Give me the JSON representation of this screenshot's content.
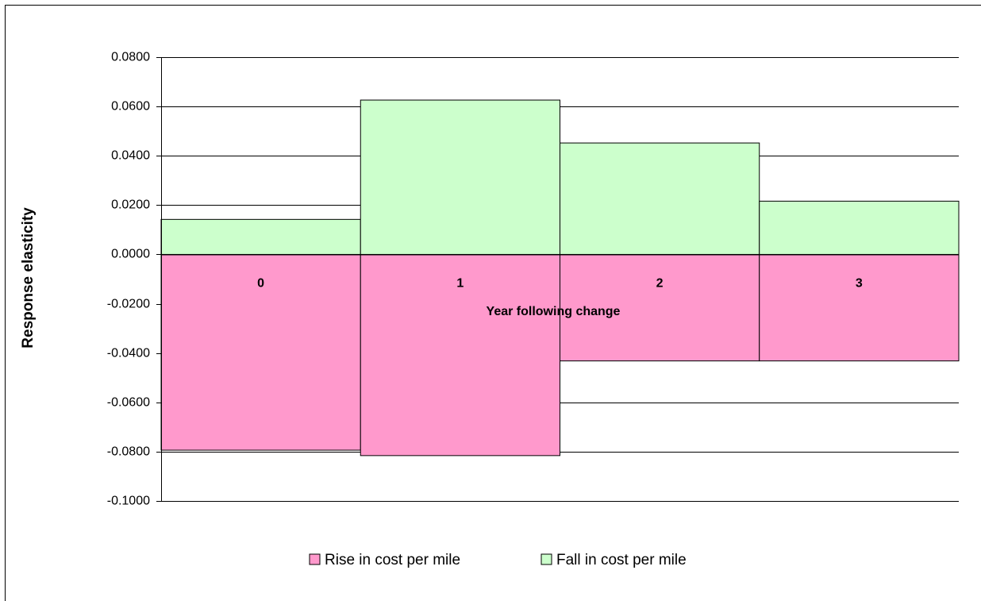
{
  "chart_data": {
    "type": "bar",
    "x_label": "Year following change",
    "y_label": "Response elasticity",
    "categories": [
      "0",
      "1",
      "2",
      "3"
    ],
    "series": [
      {
        "name": "Rise in cost per mile",
        "color": "#ff99cc",
        "values": [
          -0.0794,
          -0.0816,
          -0.0432,
          -0.0432
        ]
      },
      {
        "name": "Fall in cost per mile",
        "color": "#ccffcc",
        "values": [
          0.0142,
          0.0626,
          0.0452,
          0.0216
        ]
      }
    ],
    "ylim": [
      -0.1,
      0.08
    ],
    "yticks": [
      {
        "value": -0.1,
        "label": "-0.1000"
      },
      {
        "value": -0.08,
        "label": "-0.0800"
      },
      {
        "value": -0.06,
        "label": "-0.0600"
      },
      {
        "value": -0.04,
        "label": "-0.0400"
      },
      {
        "value": -0.02,
        "label": "-0.0200"
      },
      {
        "value": 0,
        "label": "0.0000"
      },
      {
        "value": 0.02,
        "label": "0.0200"
      },
      {
        "value": 0.04,
        "label": "0.0400"
      },
      {
        "value": 0.06,
        "label": "0.0600"
      },
      {
        "value": 0.08,
        "label": "0.0800"
      }
    ],
    "grid": true,
    "legend": "bottom"
  }
}
